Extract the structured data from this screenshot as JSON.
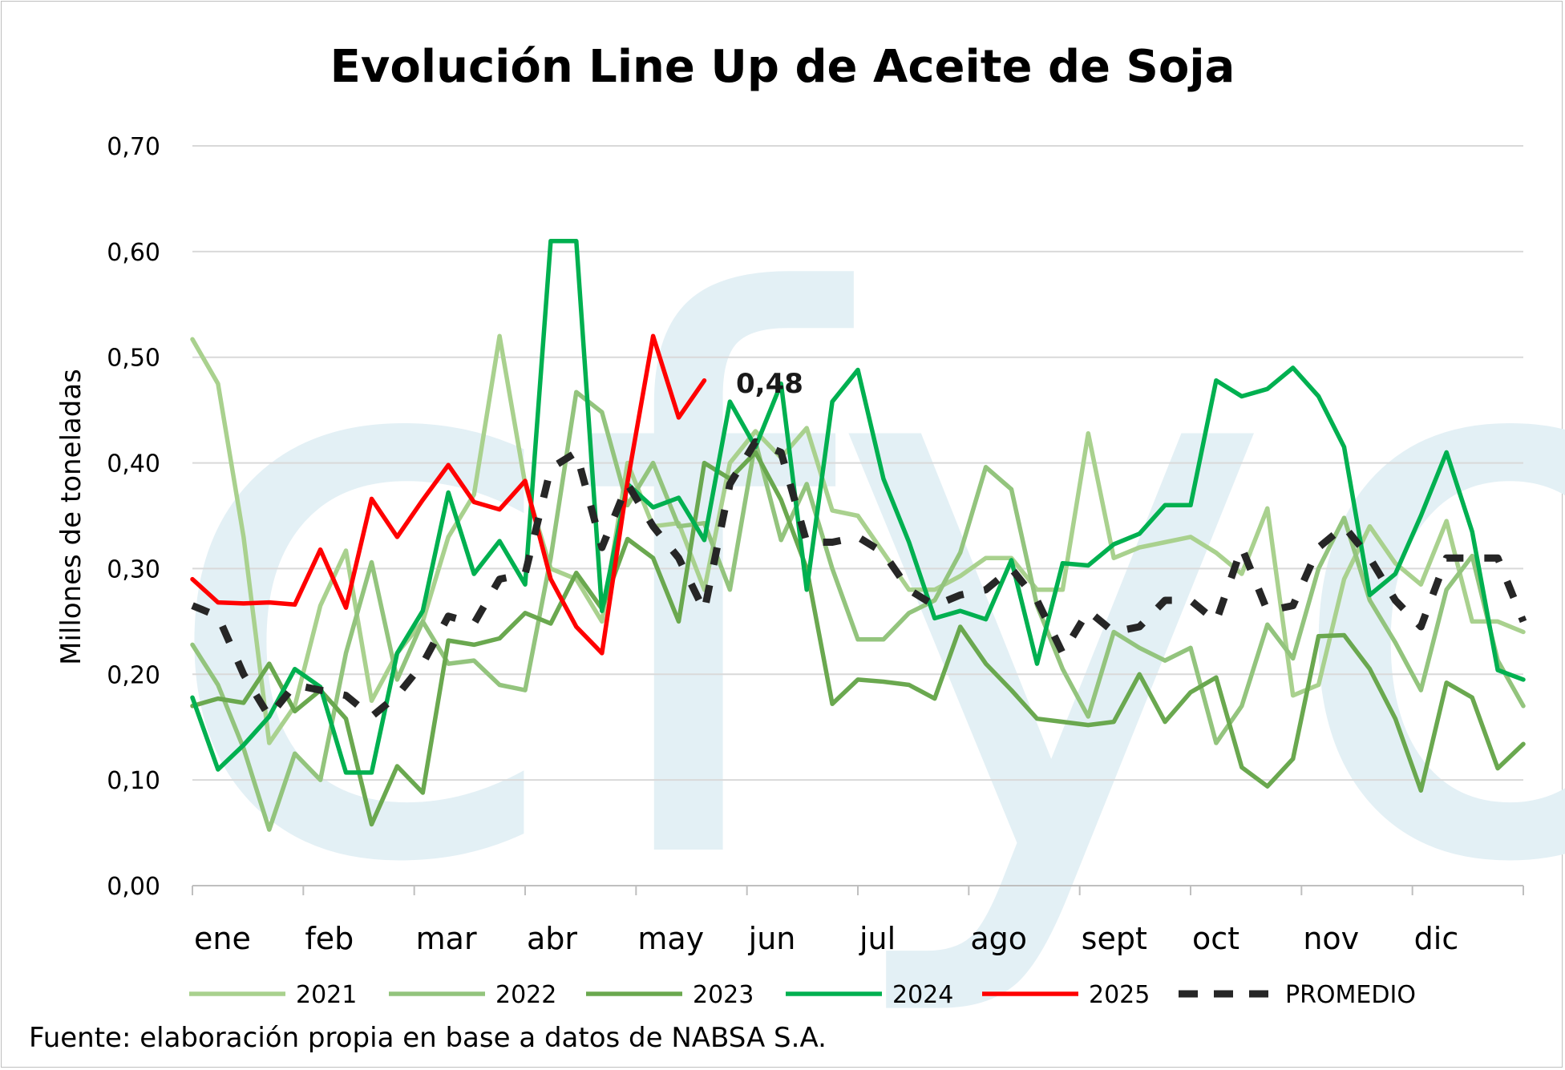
{
  "chart_data": {
    "type": "line",
    "title": "Evolución Line Up de Aceite de Soja",
    "xlabel": "",
    "ylabel": "Millones de toneladas",
    "ylim": [
      0,
      0.7
    ],
    "yticks": [
      "0,00",
      "0,10",
      "0,20",
      "0,30",
      "0,40",
      "0,50",
      "0,60",
      "0,70"
    ],
    "categories": [
      "ene",
      "feb",
      "mar",
      "abr",
      "may",
      "jun",
      "jul",
      "ago",
      "sept",
      "oct",
      "nov",
      "dic"
    ],
    "source": "Fuente: elaboración propia en base a datos de NABSA S.A.",
    "watermark": "cfyo",
    "annotation": {
      "text": "0,48",
      "series": "2025"
    },
    "grid": true,
    "legend_position": "bottom",
    "x_range_weeks": [
      0,
      52
    ],
    "series": [
      {
        "name": "2021",
        "color": "#a9d18e",
        "dashed": false,
        "x": [
          0,
          1,
          2,
          3,
          4,
          5,
          6,
          7,
          8,
          9,
          10,
          11,
          12,
          13,
          14,
          15,
          16,
          17,
          18,
          19,
          20,
          21,
          22,
          23,
          24,
          25,
          26,
          27,
          28,
          29,
          30,
          31,
          32,
          33,
          34,
          35,
          36,
          37,
          38,
          39,
          40,
          41,
          42,
          43,
          44,
          45,
          46,
          47,
          48,
          49,
          50,
          51,
          52
        ],
        "values": [
          0.517,
          0.475,
          0.33,
          0.135,
          0.17,
          0.265,
          0.317,
          0.175,
          0.22,
          0.25,
          0.33,
          0.37,
          0.52,
          0.38,
          0.3,
          0.29,
          0.25,
          0.4,
          0.34,
          0.343,
          0.28,
          0.4,
          0.43,
          0.405,
          0.433,
          0.355,
          0.35,
          0.315,
          0.28,
          0.28,
          0.293,
          0.31,
          0.31,
          0.28,
          0.28,
          0.428,
          0.31,
          0.32,
          0.325,
          0.33,
          0.315,
          0.295,
          0.357,
          0.18,
          0.19,
          0.29,
          0.34,
          0.305,
          0.285,
          0.345,
          0.25,
          0.25,
          0.24
        ]
      },
      {
        "name": "2022",
        "color": "#93c47d",
        "dashed": false,
        "x": [
          0,
          1,
          2,
          3,
          4,
          5,
          6,
          7,
          8,
          9,
          10,
          11,
          12,
          13,
          14,
          15,
          16,
          17,
          18,
          19,
          20,
          21,
          22,
          23,
          24,
          25,
          26,
          27,
          28,
          29,
          30,
          31,
          32,
          33,
          34,
          35,
          36,
          37,
          38,
          39,
          40,
          41,
          42,
          43,
          44,
          45,
          46,
          47,
          48,
          49,
          50,
          51,
          52
        ],
        "values": [
          0.228,
          0.19,
          0.13,
          0.053,
          0.125,
          0.1,
          0.22,
          0.306,
          0.195,
          0.25,
          0.21,
          0.213,
          0.19,
          0.185,
          0.31,
          0.467,
          0.448,
          0.36,
          0.4,
          0.34,
          0.343,
          0.28,
          0.42,
          0.327,
          0.38,
          0.3,
          0.233,
          0.233,
          0.258,
          0.27,
          0.315,
          0.396,
          0.375,
          0.265,
          0.205,
          0.16,
          0.24,
          0.225,
          0.213,
          0.225,
          0.135,
          0.17,
          0.247,
          0.215,
          0.3,
          0.348,
          0.27,
          0.23,
          0.185,
          0.28,
          0.312,
          0.213,
          0.17
        ]
      },
      {
        "name": "2023",
        "color": "#6aa84f",
        "dashed": false,
        "x": [
          0,
          1,
          2,
          3,
          4,
          5,
          6,
          7,
          8,
          9,
          10,
          11,
          12,
          13,
          14,
          15,
          16,
          17,
          18,
          19,
          20,
          21,
          22,
          23,
          24,
          25,
          26,
          27,
          28,
          29,
          30,
          31,
          32,
          33,
          34,
          35,
          36,
          37,
          38,
          39,
          40,
          41,
          42,
          43,
          44,
          45,
          46,
          47,
          48,
          49,
          50,
          51,
          52
        ],
        "values": [
          0.17,
          0.177,
          0.173,
          0.21,
          0.165,
          0.185,
          0.158,
          0.058,
          0.113,
          0.088,
          0.232,
          0.228,
          0.234,
          0.258,
          0.248,
          0.296,
          0.262,
          0.328,
          0.31,
          0.25,
          0.4,
          0.385,
          0.41,
          0.365,
          0.3,
          0.172,
          0.195,
          0.193,
          0.19,
          0.177,
          0.245,
          0.21,
          0.185,
          0.158,
          0.155,
          0.152,
          0.155,
          0.2,
          0.155,
          0.183,
          0.197,
          0.112,
          0.094,
          0.12,
          0.236,
          0.237,
          0.205,
          0.158,
          0.09,
          0.192,
          0.178,
          0.111,
          0.134
        ]
      },
      {
        "name": "2024",
        "color": "#00b050",
        "dashed": false,
        "x": [
          0,
          1,
          2,
          3,
          4,
          5,
          6,
          7,
          8,
          9,
          10,
          11,
          12,
          13,
          14,
          15,
          16,
          17,
          18,
          19,
          20,
          21,
          22,
          23,
          24,
          25,
          26,
          27,
          28,
          29,
          30,
          31,
          32,
          33,
          34,
          35,
          36,
          37,
          38,
          39,
          40,
          41,
          42,
          43,
          44,
          45,
          46,
          47,
          48,
          49,
          50,
          51,
          52
        ],
        "values": [
          0.178,
          0.11,
          0.133,
          0.16,
          0.205,
          0.188,
          0.107,
          0.107,
          0.22,
          0.26,
          0.372,
          0.295,
          0.326,
          0.285,
          0.61,
          0.61,
          0.26,
          0.38,
          0.358,
          0.367,
          0.327,
          0.458,
          0.415,
          0.475,
          0.28,
          0.458,
          0.488,
          0.385,
          0.325,
          0.253,
          0.26,
          0.252,
          0.308,
          0.21,
          0.305,
          0.303,
          0.323,
          0.333,
          0.36,
          0.36,
          0.478,
          0.463,
          0.47,
          0.49,
          0.463,
          0.415,
          0.275,
          0.295,
          0.35,
          0.41,
          0.335,
          0.204,
          0.195
        ]
      },
      {
        "name": "2025",
        "color": "#ff0000",
        "dashed": false,
        "x": [
          0,
          1,
          2,
          3,
          4,
          5,
          6,
          7,
          8,
          9,
          10,
          11,
          12,
          13,
          14,
          15,
          16,
          17,
          18,
          19,
          20
        ],
        "values": [
          0.29,
          0.268,
          0.267,
          0.268,
          0.266,
          0.318,
          0.263,
          0.366,
          0.33,
          0.365,
          0.398,
          0.363,
          0.356,
          0.383,
          0.29,
          0.245,
          0.22,
          0.382,
          0.52,
          0.443,
          0.478
        ]
      },
      {
        "name": "PROMEDIO",
        "color": "#262626",
        "dashed": true,
        "x": [
          0,
          1,
          2,
          3,
          4,
          5,
          6,
          7,
          8,
          9,
          10,
          11,
          12,
          13,
          14,
          15,
          16,
          17,
          18,
          19,
          20,
          21,
          22,
          23,
          24,
          25,
          26,
          27,
          28,
          29,
          30,
          31,
          32,
          33,
          34,
          35,
          36,
          37,
          38,
          39,
          40,
          41,
          42,
          43,
          44,
          45,
          46,
          47,
          48,
          49,
          50,
          51,
          52
        ],
        "values": [
          0.265,
          0.255,
          0.2,
          0.16,
          0.19,
          0.185,
          0.18,
          0.16,
          0.18,
          0.21,
          0.255,
          0.248,
          0.29,
          0.295,
          0.395,
          0.41,
          0.32,
          0.38,
          0.34,
          0.31,
          0.26,
          0.38,
          0.42,
          0.41,
          0.325,
          0.325,
          0.33,
          0.315,
          0.28,
          0.265,
          0.275,
          0.28,
          0.3,
          0.27,
          0.22,
          0.26,
          0.24,
          0.245,
          0.27,
          0.27,
          0.25,
          0.32,
          0.26,
          0.265,
          0.32,
          0.34,
          0.31,
          0.27,
          0.245,
          0.31,
          0.31,
          0.31,
          0.25
        ]
      }
    ]
  }
}
